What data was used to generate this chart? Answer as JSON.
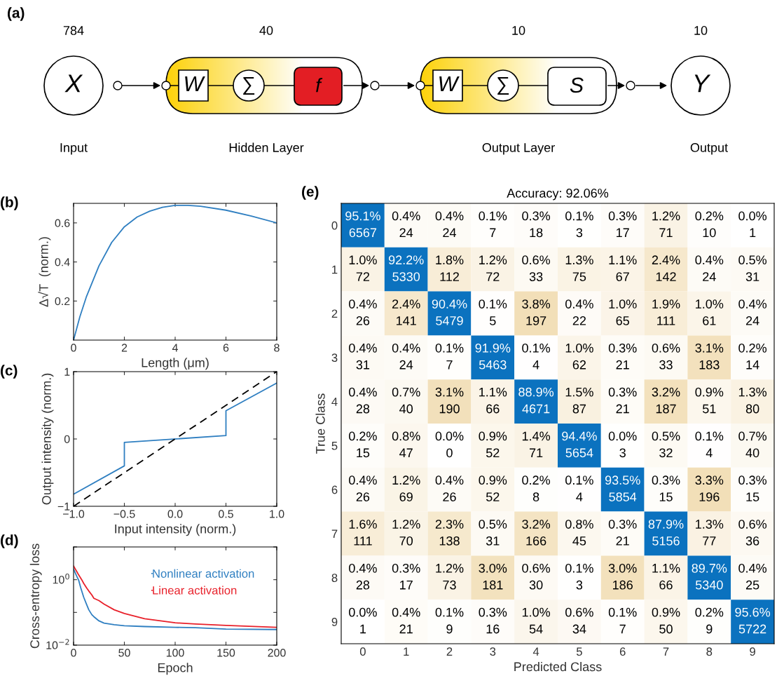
{
  "chart_data": [
    {
      "type": "other",
      "annotations": [
        "(a)",
        "784",
        "40",
        "10",
        "10",
        "X",
        "W",
        "∑",
        "f",
        "W",
        "∑",
        "S",
        "Y",
        "Input",
        "Hidden Layer",
        "Output Layer",
        "Output"
      ]
    },
    {
      "type": "line",
      "annotations": [
        "(b)"
      ],
      "xlabel": "Length (μm)",
      "ylabel": "Δ√T  (norm.)",
      "xlim": [
        0,
        8
      ],
      "ylim": [
        0,
        0.7
      ],
      "xticks": [
        0,
        2,
        4,
        6,
        8
      ],
      "yticks": [
        0.2,
        0.4,
        0.6
      ],
      "x": [
        0,
        0.25,
        0.5,
        1,
        1.5,
        2,
        2.5,
        3,
        3.5,
        4,
        4.5,
        5,
        6,
        7,
        8
      ],
      "series": [
        {
          "color": "#2f7fc1",
          "values": [
            0,
            0.12,
            0.22,
            0.38,
            0.5,
            0.58,
            0.63,
            0.66,
            0.68,
            0.69,
            0.69,
            0.685,
            0.665,
            0.635,
            0.6
          ]
        }
      ]
    },
    {
      "type": "line",
      "annotations": [
        "(c)"
      ],
      "xlabel": "Input intensity (norm.)",
      "ylabel": "Output intensity (norm.)",
      "xlim": [
        -1,
        1
      ],
      "ylim": [
        -1,
        1
      ],
      "xticks": [
        {
          "value": -1,
          "label": "−1.0"
        },
        {
          "value": -0.5,
          "label": "−0.5"
        },
        {
          "value": 0,
          "label": "0.0"
        },
        {
          "value": 0.5,
          "label": "0.5"
        },
        {
          "value": 1,
          "label": "1.0"
        }
      ],
      "yticks": [
        {
          "value": -1,
          "label": "−1"
        },
        0,
        1
      ],
      "series": [
        {
          "color": "#2f7fc1",
          "x": [
            -1,
            -0.5,
            -0.5,
            0.5,
            0.5,
            1
          ],
          "values": [
            -0.82,
            -0.4,
            -0.05,
            0.05,
            0.42,
            0.83
          ]
        },
        {
          "color": "#000000",
          "line_style": "dashed",
          "x": [
            -1,
            1
          ],
          "values": [
            -1,
            1
          ]
        }
      ]
    },
    {
      "type": "line",
      "annotations": [
        "(d)"
      ],
      "xlabel": "Epoch",
      "ylabel": "Cross-entropy loss",
      "log": "y",
      "legend": "top right",
      "xlim": [
        0,
        200
      ],
      "ylim": [
        0.01,
        10
      ],
      "xticks": [
        0,
        50,
        100,
        150,
        200
      ],
      "yticks": [
        {
          "value": 0.01,
          "label": "10$^{−2}$"
        },
        {
          "value": 0.1,
          "label": null
        },
        {
          "value": 1,
          "label": "10$^{0}$"
        },
        {
          "value": 10,
          "label": null
        }
      ],
      "series": [
        {
          "name": "Nonlinear activation",
          "color": "#2f7fc1",
          "x": [
            0,
            3,
            5,
            7,
            10,
            13,
            15,
            18,
            20,
            25,
            30,
            40,
            50,
            70,
            100,
            120,
            150,
            200
          ],
          "values": [
            2.1,
            1.3,
            0.97,
            0.57,
            0.29,
            0.17,
            0.12,
            0.085,
            0.074,
            0.055,
            0.047,
            0.042,
            0.039,
            0.037,
            0.035,
            0.034,
            0.031,
            0.03
          ]
        },
        {
          "name": "Linear activation",
          "color": "#e8202a",
          "x": [
            0,
            3,
            5,
            8,
            10,
            13,
            15,
            18,
            20,
            25,
            30,
            40,
            50,
            70,
            100,
            120,
            150,
            200
          ],
          "values": [
            2.6,
            1.8,
            1.4,
            1.0,
            0.77,
            0.55,
            0.45,
            0.34,
            0.27,
            0.23,
            0.18,
            0.12,
            0.093,
            0.064,
            0.048,
            0.044,
            0.04,
            0.035
          ]
        }
      ]
    },
    {
      "type": "heatmap",
      "title": "Accuracy: 92.06%",
      "xlabel": "Predicted Class",
      "ylabel": "True Class",
      "colors": [
        "#0b72bf",
        "#f2dfb8"
      ],
      "categories": [
        "0",
        "1",
        "2",
        "3",
        "4",
        "5",
        "6",
        "7",
        "8",
        "9"
      ],
      "y_categories": [
        "0",
        "1",
        "2",
        "3",
        "4",
        "5",
        "6",
        "7",
        "8",
        "9"
      ],
      "cells": [
        [
          6567,
          24,
          24,
          7,
          18,
          3,
          17,
          71,
          10,
          1
        ],
        [
          72,
          5330,
          112,
          72,
          33,
          75,
          67,
          142,
          24,
          31
        ],
        [
          26,
          141,
          5479,
          5,
          197,
          22,
          65,
          111,
          61,
          24
        ],
        [
          31,
          24,
          7,
          5463,
          4,
          62,
          21,
          33,
          183,
          14
        ],
        [
          28,
          40,
          190,
          66,
          4671,
          87,
          21,
          187,
          51,
          80
        ],
        [
          15,
          47,
          0,
          52,
          71,
          5654,
          3,
          32,
          4,
          40
        ],
        [
          26,
          69,
          26,
          52,
          8,
          4,
          5854,
          15,
          196,
          15
        ],
        [
          111,
          70,
          138,
          31,
          166,
          45,
          21,
          5156,
          77,
          36
        ],
        [
          28,
          17,
          73,
          181,
          30,
          3,
          186,
          66,
          5340,
          25
        ],
        [
          1,
          21,
          9,
          16,
          54,
          34,
          7,
          50,
          9,
          5722
        ]
      ],
      "data_labels": true,
      "annotations": [
        "(e)",
        "95.1%",
        "0.4%",
        "0.4%",
        "0.1%",
        "0.3%",
        "0.1%",
        "0.3%",
        "1.2%",
        "0.2%",
        "0.0%",
        "1.0%",
        "92.2%",
        "1.8%",
        "1.2%",
        "0.6%",
        "1.3%",
        "1.1%",
        "2.4%",
        "0.4%",
        "0.5%",
        "0.4%",
        "2.4%",
        "90.4%",
        "0.1%",
        "3.8%",
        "0.4%",
        "1.0%",
        "1.9%",
        "1.0%",
        "0.4%",
        "0.4%",
        "0.4%",
        "0.1%",
        "91.9%",
        "0.1%",
        "1.0%",
        "0.3%",
        "0.6%",
        "3.1%",
        "0.2%",
        "0.4%",
        "0.7%",
        "3.1%",
        "1.1%",
        "88.9%",
        "1.5%",
        "0.3%",
        "3.2%",
        "0.9%",
        "1.3%",
        "0.2%",
        "0.8%",
        "0.0%",
        "0.9%",
        "1.4%",
        "94.4%",
        "0.0%",
        "0.5%",
        "0.1%",
        "0.7%",
        "0.4%",
        "1.2%",
        "0.4%",
        "0.9%",
        "0.2%",
        "0.1%",
        "93.5%",
        "0.3%",
        "3.3%",
        "0.3%",
        "1.6%",
        "1.2%",
        "2.3%",
        "0.5%",
        "3.2%",
        "0.8%",
        "0.3%",
        "87.9%",
        "1.3%",
        "0.6%",
        "0.4%",
        "0.3%",
        "1.2%",
        "3.0%",
        "0.6%",
        "0.1%",
        "3.0%",
        "1.1%",
        "89.7%",
        "0.4%",
        "0.0%",
        "0.4%",
        "0.1%",
        "0.3%",
        "1.0%",
        "0.6%",
        "0.1%",
        "0.9%",
        "0.2%",
        "95.6%"
      ]
    }
  ]
}
